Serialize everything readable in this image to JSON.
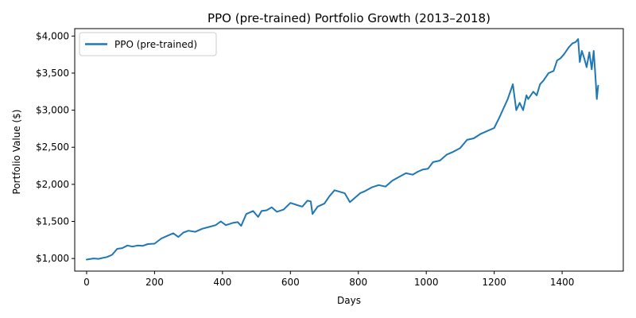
{
  "chart_data": {
    "type": "line",
    "title": "PPO (pre-trained) Portfolio Growth (2013–2018)",
    "xlabel": "Days",
    "ylabel": "Portfolio Value ($)",
    "xlim": [
      -35,
      1580
    ],
    "ylim": [
      830,
      4100
    ],
    "xticks": [
      0,
      200,
      400,
      600,
      800,
      1000,
      1200,
      1400
    ],
    "yticks": [
      1000,
      1500,
      2000,
      2500,
      3000,
      3500,
      4000
    ],
    "ytick_labels": [
      "$1,000",
      "$1,500",
      "$2,000",
      "$2,500",
      "$3,000",
      "$3,500",
      "$4,000"
    ],
    "grid": false,
    "legend_position": "top-left",
    "series": [
      {
        "name": "PPO (pre-trained)",
        "color": "#1f77b4",
        "x": [
          0,
          20,
          35,
          50,
          60,
          75,
          90,
          105,
          120,
          135,
          150,
          165,
          180,
          200,
          220,
          240,
          255,
          270,
          285,
          300,
          320,
          340,
          360,
          380,
          395,
          410,
          430,
          445,
          455,
          470,
          490,
          505,
          515,
          530,
          545,
          560,
          580,
          600,
          620,
          635,
          650,
          660,
          665,
          680,
          700,
          715,
          730,
          745,
          760,
          775,
          790,
          805,
          820,
          840,
          860,
          880,
          900,
          920,
          940,
          960,
          975,
          990,
          1005,
          1020,
          1040,
          1060,
          1080,
          1100,
          1120,
          1140,
          1160,
          1180,
          1200,
          1215,
          1225,
          1240,
          1255,
          1265,
          1275,
          1285,
          1295,
          1300,
          1315,
          1325,
          1335,
          1345,
          1360,
          1375,
          1385,
          1395,
          1405,
          1420,
          1430,
          1440,
          1447,
          1452,
          1458,
          1465,
          1472,
          1480,
          1487,
          1493,
          1498,
          1502,
          1506
        ],
        "y": [
          985,
          1000,
          995,
          1010,
          1020,
          1050,
          1130,
          1140,
          1175,
          1160,
          1175,
          1170,
          1195,
          1200,
          1270,
          1310,
          1340,
          1290,
          1350,
          1375,
          1360,
          1400,
          1425,
          1450,
          1500,
          1450,
          1480,
          1490,
          1440,
          1600,
          1640,
          1560,
          1640,
          1650,
          1690,
          1630,
          1660,
          1750,
          1720,
          1700,
          1780,
          1770,
          1600,
          1700,
          1740,
          1840,
          1920,
          1900,
          1880,
          1760,
          1820,
          1880,
          1910,
          1960,
          1990,
          1970,
          2050,
          2100,
          2150,
          2130,
          2170,
          2200,
          2210,
          2300,
          2320,
          2400,
          2440,
          2490,
          2600,
          2620,
          2680,
          2720,
          2760,
          2900,
          3000,
          3150,
          3350,
          3000,
          3100,
          3000,
          3200,
          3150,
          3250,
          3200,
          3350,
          3400,
          3500,
          3530,
          3670,
          3700,
          3750,
          3850,
          3900,
          3920,
          3960,
          3650,
          3800,
          3700,
          3580,
          3780,
          3550,
          3800,
          3450,
          3150,
          3330
        ]
      }
    ]
  }
}
